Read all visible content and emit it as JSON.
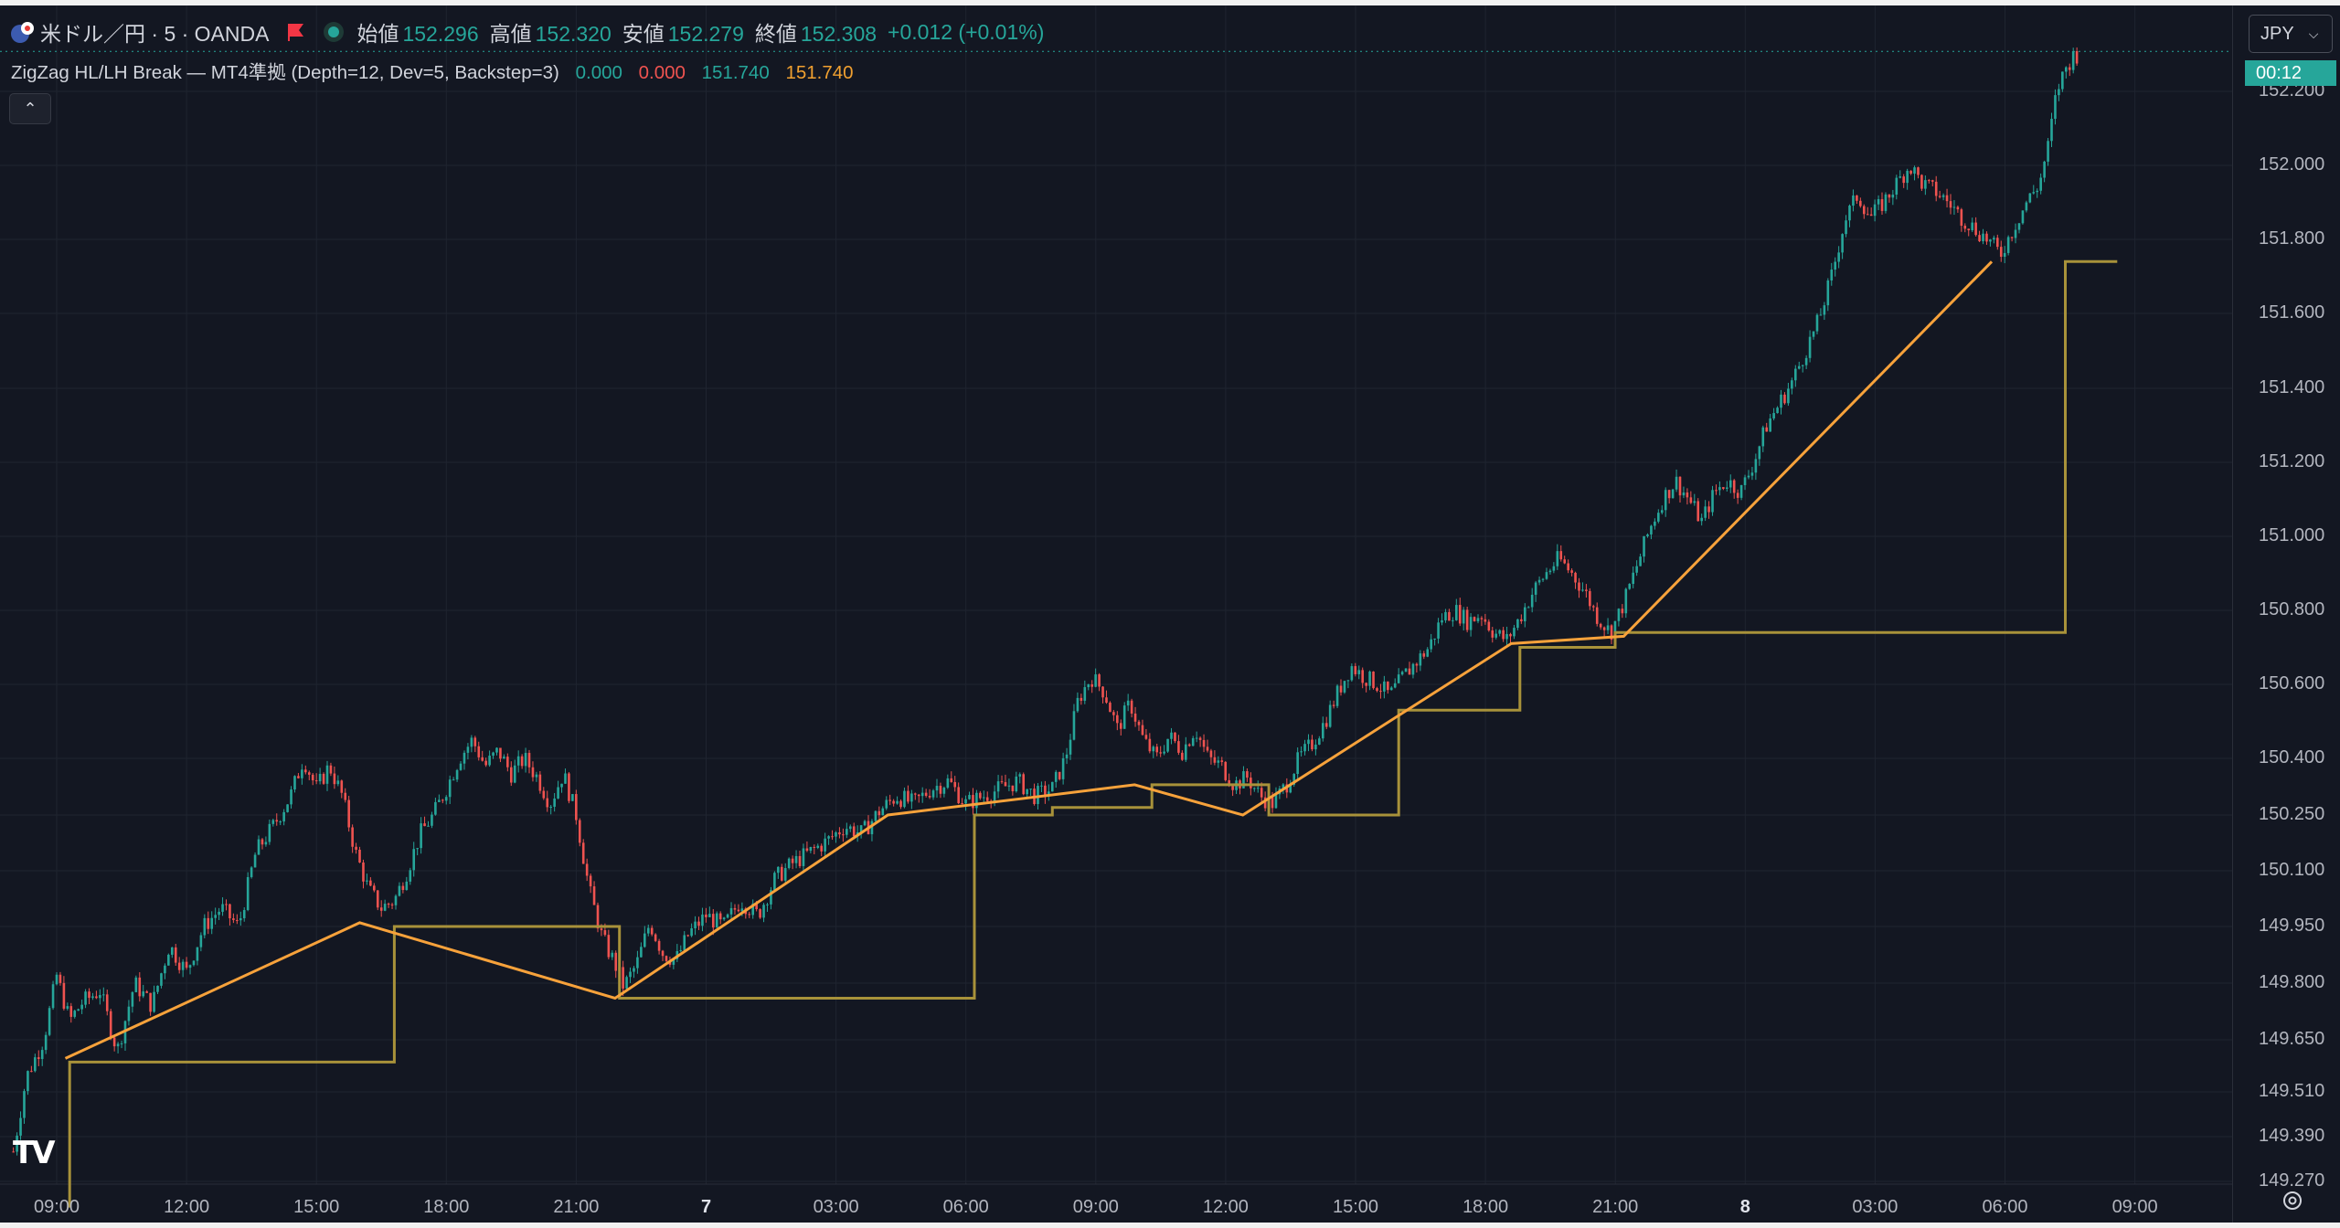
{
  "legend": {
    "symbol": "米ドル／円 · 5 · OANDA",
    "open_label": "始値",
    "open": "152.296",
    "high_label": "高値",
    "high": "152.320",
    "low_label": "安値",
    "low": "152.279",
    "close_label": "終値",
    "close": "152.308",
    "change": "+0.012 (+0.01%)"
  },
  "indicator": {
    "name": "ZigZag HL/LH Break — MT4準拠 (Depth=12, Dev=5, Backstep=3)",
    "values": [
      "0.000",
      "0.000",
      "151.740",
      "151.740"
    ],
    "colors": [
      "#26a69a",
      "#ef5350",
      "#26a69a",
      "#f0a030"
    ]
  },
  "currency_button": {
    "label": "JPY",
    "icon": "chevron-down-icon"
  },
  "last_price_tag": "00:12",
  "colors": {
    "background": "#131722",
    "up": "#26a69a",
    "down": "#ef5350",
    "zigzag": "#f7a23b",
    "step": "#a8923a",
    "grid": "#1f2430",
    "axis_text": "#b2b5be"
  },
  "chart_data": {
    "type": "line",
    "symbol": "USD/JPY 5m OANDA",
    "price_axis": {
      "ticks": [
        "152.200",
        "152.000",
        "151.800",
        "151.600",
        "151.400",
        "151.200",
        "151.000",
        "150.800",
        "150.600",
        "150.400",
        "150.250",
        "150.100",
        "149.950",
        "149.800",
        "149.650",
        "149.510",
        "149.390",
        "149.270"
      ]
    },
    "time_axis": {
      "labels": [
        "09:00",
        "12:00",
        "15:00",
        "18:00",
        "21:00",
        "7",
        "03:00",
        "06:00",
        "09:00",
        "12:00",
        "15:00",
        "18:00",
        "21:00",
        "8",
        "03:00",
        "06:00",
        "09:00"
      ],
      "bold": [
        false,
        false,
        false,
        false,
        false,
        true,
        false,
        false,
        false,
        false,
        false,
        false,
        false,
        true,
        false,
        false,
        false
      ]
    },
    "price_path": [
      [
        8.0,
        149.35
      ],
      [
        8.3,
        149.55
      ],
      [
        8.7,
        149.65
      ],
      [
        9.0,
        149.82
      ],
      [
        9.3,
        149.7
      ],
      [
        9.6,
        149.75
      ],
      [
        10.0,
        149.78
      ],
      [
        10.4,
        149.62
      ],
      [
        10.8,
        149.8
      ],
      [
        11.2,
        149.74
      ],
      [
        11.6,
        149.9
      ],
      [
        12.0,
        149.83
      ],
      [
        12.4,
        149.95
      ],
      [
        12.8,
        150.0
      ],
      [
        13.2,
        149.95
      ],
      [
        13.6,
        150.15
      ],
      [
        14.0,
        150.22
      ],
      [
        14.4,
        150.3
      ],
      [
        14.7,
        150.4
      ],
      [
        15.0,
        150.32
      ],
      [
        15.3,
        150.38
      ],
      [
        15.6,
        150.3
      ],
      [
        15.9,
        150.15
      ],
      [
        16.2,
        150.05
      ],
      [
        16.5,
        150.0
      ],
      [
        16.8,
        150.02
      ],
      [
        17.1,
        150.1
      ],
      [
        17.4,
        150.2
      ],
      [
        17.7,
        150.25
      ],
      [
        18.0,
        150.32
      ],
      [
        18.3,
        150.4
      ],
      [
        18.6,
        150.45
      ],
      [
        18.9,
        150.38
      ],
      [
        19.2,
        150.42
      ],
      [
        19.5,
        150.36
      ],
      [
        19.8,
        150.4
      ],
      [
        20.1,
        150.35
      ],
      [
        20.4,
        150.28
      ],
      [
        20.7,
        150.36
      ],
      [
        21.0,
        150.25
      ],
      [
        21.3,
        150.05
      ],
      [
        21.6,
        149.92
      ],
      [
        21.9,
        149.85
      ],
      [
        22.1,
        149.79
      ],
      [
        22.4,
        149.85
      ],
      [
        22.7,
        149.96
      ],
      [
        23.0,
        149.88
      ],
      [
        23.3,
        149.86
      ],
      [
        23.6,
        149.93
      ],
      [
        24.0,
        149.98
      ],
      [
        24.4,
        149.95
      ],
      [
        24.8,
        150.02
      ],
      [
        25.2,
        149.98
      ],
      [
        25.6,
        150.08
      ],
      [
        26.0,
        150.12
      ],
      [
        26.4,
        150.15
      ],
      [
        26.8,
        150.18
      ],
      [
        27.2,
        150.22
      ],
      [
        27.6,
        150.2
      ],
      [
        28.0,
        150.26
      ],
      [
        28.4,
        150.3
      ],
      [
        28.8,
        150.28
      ],
      [
        29.2,
        150.32
      ],
      [
        29.6,
        150.34
      ],
      [
        30.0,
        150.28
      ],
      [
        30.4,
        150.3
      ],
      [
        30.8,
        150.32
      ],
      [
        31.2,
        150.34
      ],
      [
        31.6,
        150.3
      ],
      [
        32.0,
        150.32
      ],
      [
        32.3,
        150.4
      ],
      [
        32.6,
        150.56
      ],
      [
        32.9,
        150.62
      ],
      [
        33.2,
        150.58
      ],
      [
        33.5,
        150.48
      ],
      [
        33.8,
        150.55
      ],
      [
        34.1,
        150.45
      ],
      [
        34.4,
        150.4
      ],
      [
        34.7,
        150.46
      ],
      [
        35.0,
        150.42
      ],
      [
        35.3,
        150.48
      ],
      [
        35.6,
        150.4
      ],
      [
        35.9,
        150.38
      ],
      [
        36.2,
        150.33
      ],
      [
        36.5,
        150.35
      ],
      [
        36.8,
        150.3
      ],
      [
        37.1,
        150.28
      ],
      [
        37.4,
        150.33
      ],
      [
        37.7,
        150.4
      ],
      [
        38.0,
        150.44
      ],
      [
        38.3,
        150.5
      ],
      [
        38.6,
        150.58
      ],
      [
        38.9,
        150.65
      ],
      [
        39.2,
        150.62
      ],
      [
        39.5,
        150.6
      ],
      [
        39.8,
        150.57
      ],
      [
        40.1,
        150.62
      ],
      [
        40.4,
        150.66
      ],
      [
        40.7,
        150.7
      ],
      [
        41.0,
        150.78
      ],
      [
        41.3,
        150.8
      ],
      [
        41.6,
        150.77
      ],
      [
        41.9,
        150.79
      ],
      [
        42.2,
        150.74
      ],
      [
        42.5,
        150.72
      ],
      [
        42.8,
        150.78
      ],
      [
        43.1,
        150.85
      ],
      [
        43.4,
        150.9
      ],
      [
        43.7,
        150.94
      ],
      [
        44.0,
        150.9
      ],
      [
        44.3,
        150.85
      ],
      [
        44.6,
        150.78
      ],
      [
        44.9,
        150.74
      ],
      [
        45.2,
        150.82
      ],
      [
        45.5,
        150.92
      ],
      [
        45.8,
        151.02
      ],
      [
        46.1,
        151.1
      ],
      [
        46.4,
        151.15
      ],
      [
        46.7,
        151.1
      ],
      [
        47.0,
        151.04
      ],
      [
        47.3,
        151.12
      ],
      [
        47.6,
        151.15
      ],
      [
        47.9,
        151.12
      ],
      [
        48.2,
        151.2
      ],
      [
        48.5,
        151.3
      ],
      [
        48.8,
        151.36
      ],
      [
        49.1,
        151.42
      ],
      [
        49.4,
        151.5
      ],
      [
        49.7,
        151.58
      ],
      [
        50.0,
        151.7
      ],
      [
        50.3,
        151.85
      ],
      [
        50.6,
        151.92
      ],
      [
        50.9,
        151.86
      ],
      [
        51.2,
        151.9
      ],
      [
        51.5,
        151.95
      ],
      [
        51.8,
        152.0
      ],
      [
        52.1,
        151.95
      ],
      [
        52.4,
        151.93
      ],
      [
        52.7,
        151.9
      ],
      [
        53.0,
        151.86
      ],
      [
        53.3,
        151.83
      ],
      [
        53.6,
        151.8
      ],
      [
        53.9,
        151.76
      ],
      [
        54.2,
        151.83
      ],
      [
        54.5,
        151.9
      ],
      [
        54.8,
        151.95
      ],
      [
        55.0,
        152.05
      ],
      [
        55.2,
        152.2
      ],
      [
        55.4,
        152.26
      ],
      [
        55.6,
        152.3
      ]
    ],
    "zigzag": [
      [
        9.2,
        149.6
      ],
      [
        16.0,
        149.96
      ],
      [
        21.9,
        149.76
      ],
      [
        28.2,
        150.25
      ],
      [
        33.9,
        150.33
      ],
      [
        36.4,
        150.25
      ],
      [
        42.6,
        150.71
      ],
      [
        45.2,
        150.73
      ],
      [
        53.7,
        151.74
      ]
    ],
    "breakout_level": [
      [
        9.3,
        149.2
      ],
      [
        9.3,
        149.59
      ],
      [
        16.8,
        149.59
      ],
      [
        16.8,
        149.95
      ],
      [
        22.0,
        149.95
      ],
      [
        22.0,
        149.76
      ],
      [
        30.2,
        149.76
      ],
      [
        30.2,
        150.25
      ],
      [
        32.0,
        150.25
      ],
      [
        32.0,
        150.27
      ],
      [
        34.3,
        150.27
      ],
      [
        34.3,
        150.33
      ],
      [
        37.0,
        150.33
      ],
      [
        37.0,
        150.25
      ],
      [
        40.0,
        150.25
      ],
      [
        40.0,
        150.53
      ],
      [
        42.8,
        150.53
      ],
      [
        42.8,
        150.7
      ],
      [
        45.0,
        150.7
      ],
      [
        45.0,
        150.74
      ],
      [
        55.4,
        150.74
      ],
      [
        55.4,
        151.74
      ],
      [
        56.6,
        151.74
      ]
    ]
  }
}
